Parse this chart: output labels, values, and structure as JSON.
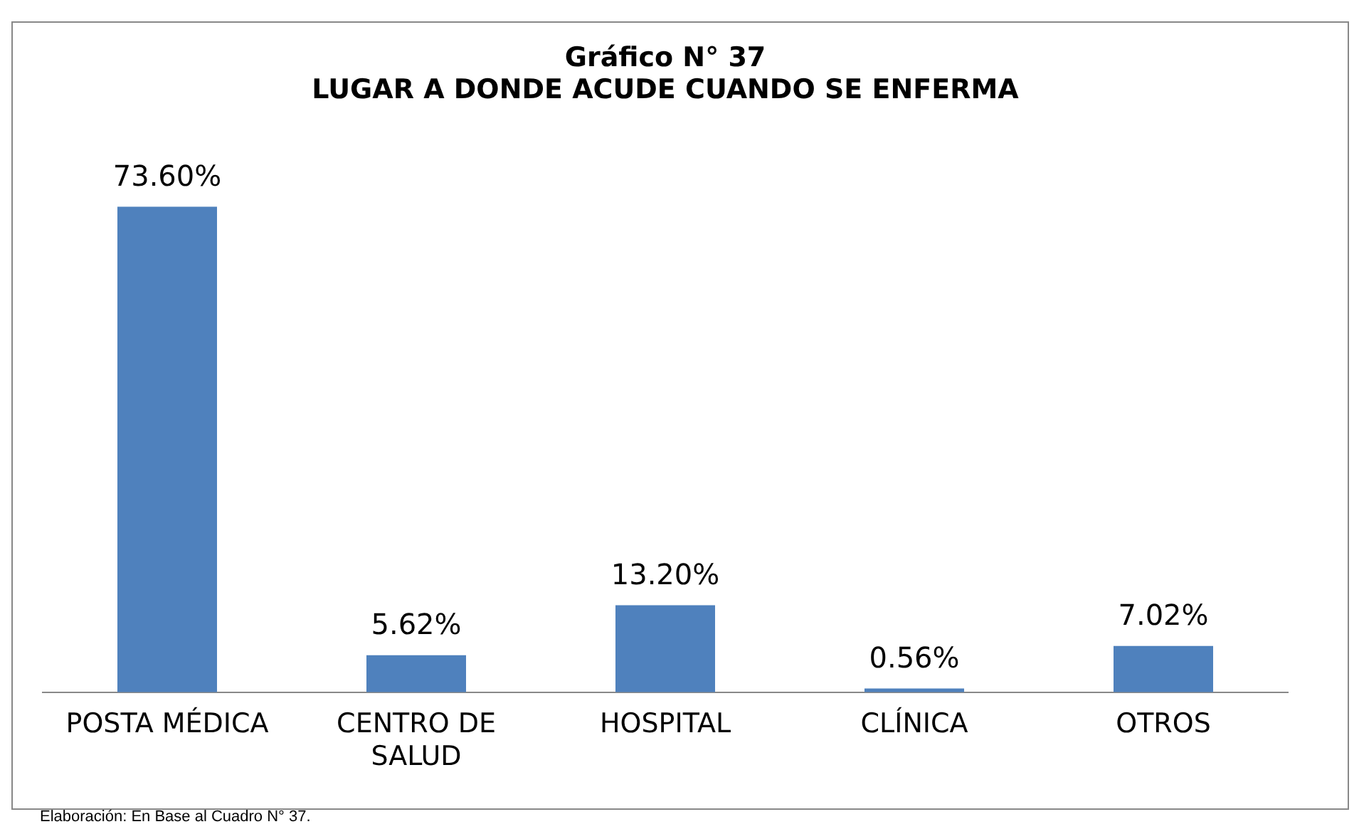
{
  "chart_data": {
    "type": "bar",
    "title": "Gráfico N° 37\nLUGAR A DONDE ACUDE CUANDO SE ENFERMA",
    "categories": [
      "POSTA MÉDICA",
      "CENTRO DE SALUD",
      "HOSPITAL",
      "CLÍNICA",
      "OTROS"
    ],
    "values": [
      73.6,
      5.62,
      13.2,
      0.56,
      7.02
    ],
    "value_labels": [
      "73.60%",
      "5.62%",
      "13.20%",
      "0.56%",
      "7.02%"
    ],
    "color": "#4f81bd",
    "tick_labels": "x",
    "grid": false,
    "legend": false,
    "annotations": [
      "Elaboración: En Base al Cuadro N° 37."
    ]
  }
}
